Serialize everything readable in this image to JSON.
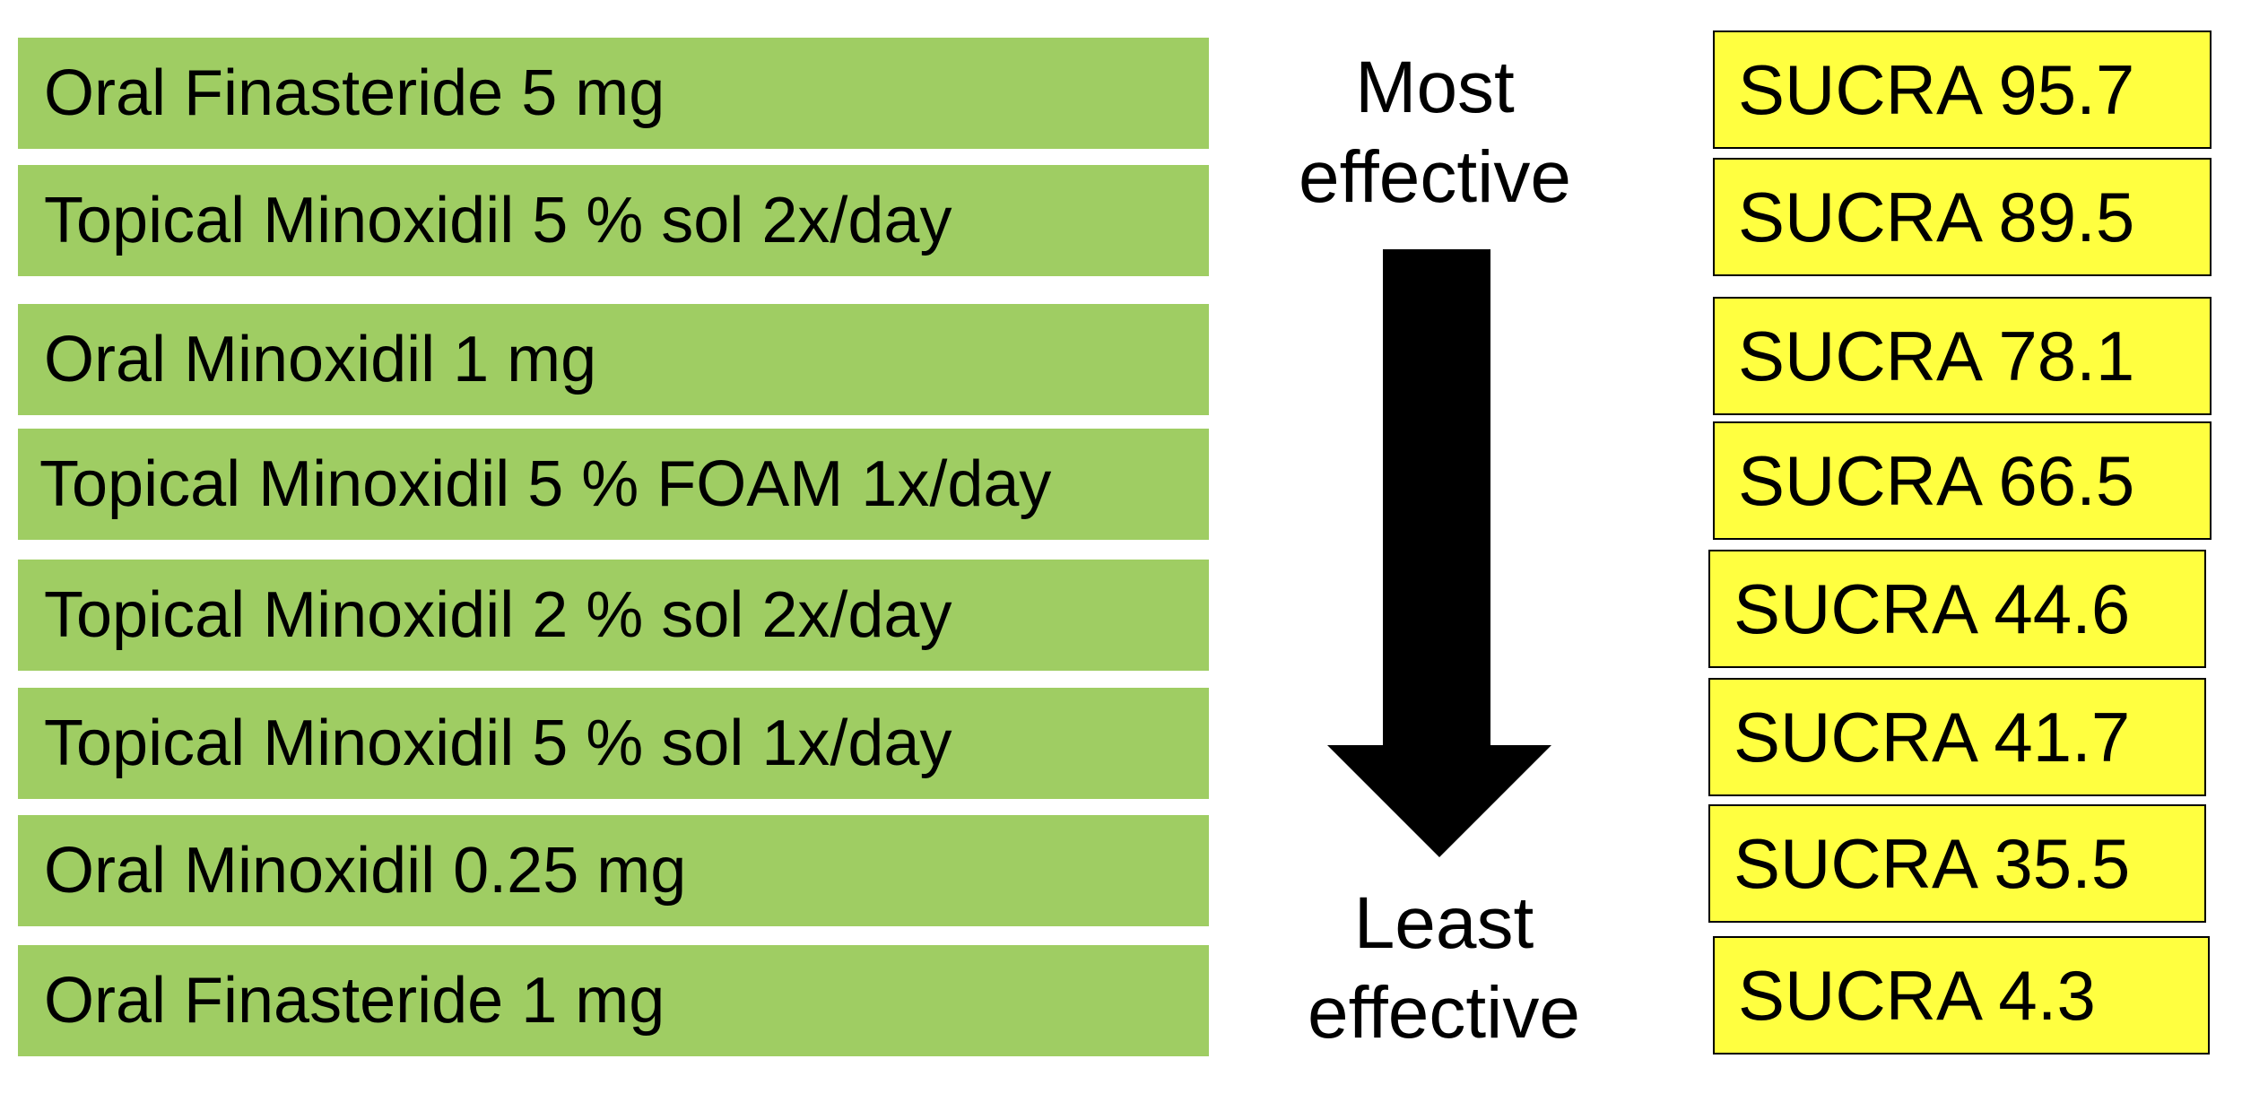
{
  "colors": {
    "treatment_fill": "#9fcd63",
    "sucra_fill": "#ffff40",
    "arrow": "#000000"
  },
  "direction": {
    "top_label_line1": "Most",
    "top_label_line2": "effective",
    "bottom_label_line1": "Least",
    "bottom_label_line2": "effective",
    "arrow_icon": "arrow-down-icon"
  },
  "rankings": [
    {
      "treatment": "Oral Finasteride 5 mg",
      "sucra": "SUCRA 95.7"
    },
    {
      "treatment": "Topical Minoxidil 5 % sol 2x/day",
      "sucra": "SUCRA 89.5"
    },
    {
      "treatment": "Oral Minoxidil  1 mg",
      "sucra": "SUCRA 78.1"
    },
    {
      "treatment": "Topical Minoxidil 5 % FOAM 1x/day",
      "sucra": "SUCRA 66.5"
    },
    {
      "treatment": "Topical Minoxidil 2 % sol 2x/day",
      "sucra": "SUCRA 44.6"
    },
    {
      "treatment": "Topical Minoxidil 5 % sol 1x/day",
      "sucra": "SUCRA 41.7"
    },
    {
      "treatment": "Oral Minoxidil 0.25 mg",
      "sucra": "SUCRA 35.5"
    },
    {
      "treatment": "Oral Finasteride 1 mg",
      "sucra": "SUCRA 4.3"
    }
  ]
}
